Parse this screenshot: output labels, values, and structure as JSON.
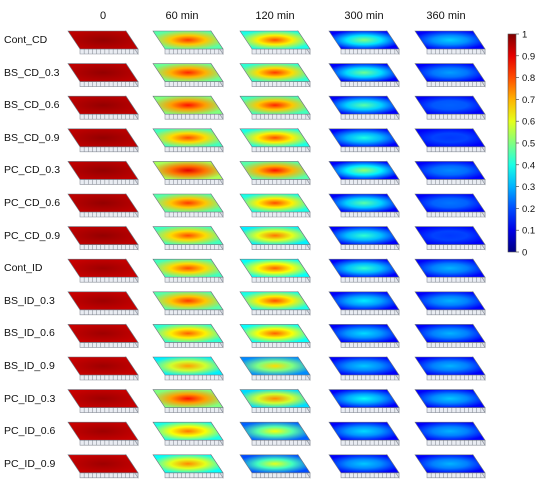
{
  "columns": [
    "0",
    "60 min",
    "120 min",
    "300 min",
    "360 min"
  ],
  "rows": [
    {
      "label": "Cont_CD",
      "levels": [
        0.98,
        0.82,
        0.8,
        0.5,
        0.33
      ]
    },
    {
      "label": "BS_CD_0.3",
      "levels": [
        0.98,
        0.84,
        0.82,
        0.48,
        0.28
      ]
    },
    {
      "label": "BS_CD_0.6",
      "levels": [
        0.98,
        0.86,
        0.84,
        0.46,
        0.22
      ]
    },
    {
      "label": "BS_CD_0.9",
      "levels": [
        0.98,
        0.8,
        0.8,
        0.4,
        0.18
      ]
    },
    {
      "label": "PC_CD_0.3",
      "levels": [
        0.98,
        0.9,
        0.86,
        0.52,
        0.26
      ]
    },
    {
      "label": "PC_CD_0.6",
      "levels": [
        0.98,
        0.82,
        0.8,
        0.46,
        0.24
      ]
    },
    {
      "label": "PC_CD_0.9",
      "levels": [
        0.98,
        0.8,
        0.76,
        0.42,
        0.18
      ]
    },
    {
      "label": "Cont_ID",
      "levels": [
        0.97,
        0.8,
        0.78,
        0.42,
        0.3
      ]
    },
    {
      "label": "BS_ID_0.3",
      "levels": [
        0.97,
        0.82,
        0.8,
        0.36,
        0.3
      ]
    },
    {
      "label": "BS_ID_0.6",
      "levels": [
        0.97,
        0.78,
        0.78,
        0.34,
        0.3
      ]
    },
    {
      "label": "BS_ID_0.9",
      "levels": [
        0.97,
        0.72,
        0.66,
        0.32,
        0.3
      ]
    },
    {
      "label": "PC_ID_0.3",
      "levels": [
        0.97,
        0.86,
        0.74,
        0.38,
        0.32
      ]
    },
    {
      "label": "PC_ID_0.6",
      "levels": [
        0.97,
        0.76,
        0.62,
        0.34,
        0.3
      ]
    },
    {
      "label": "PC_ID_0.9",
      "levels": [
        0.97,
        0.74,
        0.6,
        0.32,
        0.3
      ]
    }
  ],
  "colorbar": {
    "ticks": [
      "1",
      "0.9",
      "0.8",
      "0.7",
      "0.6",
      "0.5",
      "0.4",
      "0.3",
      "0.2",
      "0.1",
      "0"
    ],
    "colormap": "jet"
  }
}
